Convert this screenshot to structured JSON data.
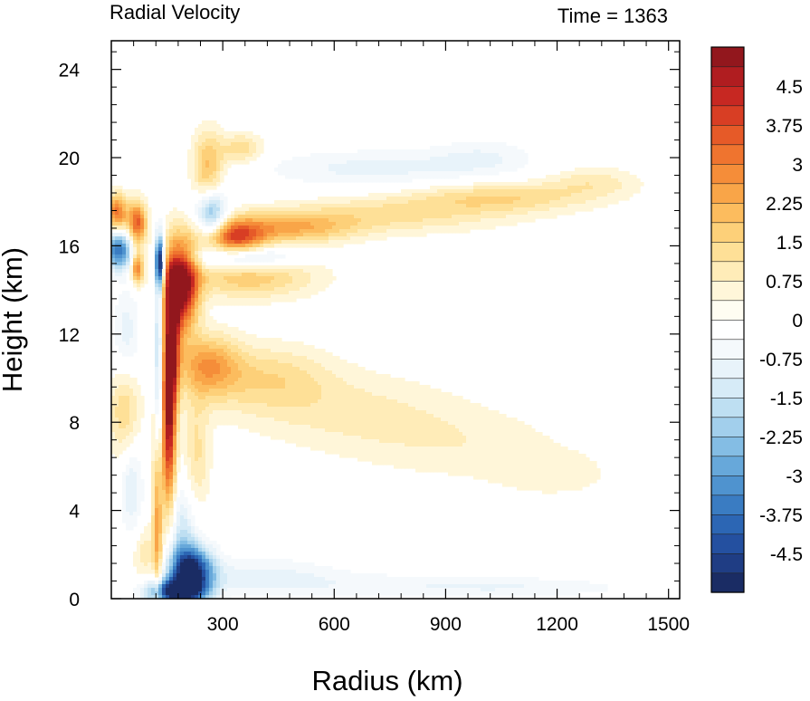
{
  "chart_data": {
    "type": "heatmap",
    "title_left": "Radial Velocity",
    "title_right": "Time = 1363",
    "xlabel": "Radius (km)",
    "ylabel": "Height (km)",
    "xlim": [
      0,
      1530
    ],
    "ylim": [
      0,
      25.3
    ],
    "x_ticks": [
      300,
      600,
      900,
      1200,
      1500
    ],
    "y_ticks": [
      0,
      4,
      8,
      12,
      16,
      20,
      24
    ],
    "colorbar": {
      "min": -5.25,
      "max": 5.25,
      "step": 0.375,
      "tick_values": [
        4.5,
        3.75,
        3,
        2.25,
        1.5,
        0.75,
        0,
        -0.75,
        -1.5,
        -2.25,
        -3,
        -3.75,
        -4.5
      ],
      "tick_labels": [
        "4.5",
        "3.75",
        "3",
        "2.25",
        "1.5",
        "0.75",
        "0",
        "-0.75",
        "-1.5",
        "-2.25",
        "-3",
        "-3.75",
        "-4.5"
      ],
      "colors": [
        "#1a2c64",
        "#1f3d84",
        "#2450a0",
        "#2c66b4",
        "#3a7cc2",
        "#4f93cf",
        "#67a8da",
        "#84bde4",
        "#a2cfec",
        "#bedff2",
        "#d6ebf7",
        "#e8f3fa",
        "#f5f9fc",
        "#ffffff",
        "#fffdf2",
        "#fff6d9",
        "#ffecb8",
        "#fee097",
        "#fdd079",
        "#fcbc5e",
        "#f9a548",
        "#f58d39",
        "#ef742f",
        "#e65a28",
        "#d83e24",
        "#c72822",
        "#b01d20",
        "#92171d"
      ]
    },
    "features": [
      {
        "r": 190,
        "z": 14.2,
        "sr": 30,
        "sz": 1.4,
        "v": 5.4
      },
      {
        "r": 165,
        "z": 12.0,
        "sr": 14,
        "sz": 2.2,
        "v": 3.6
      },
      {
        "r": 155,
        "z": 8.0,
        "sr": 13,
        "sz": 3.0,
        "v": 4.6
      },
      {
        "r": 125,
        "z": 4.0,
        "sr": 9,
        "sz": 3.0,
        "v": 3.0
      },
      {
        "r": 130,
        "z": 15.2,
        "sr": 8,
        "sz": 0.8,
        "v": -5.0
      },
      {
        "r": 127,
        "z": 10.0,
        "sr": 6,
        "sz": 4.0,
        "v": -2.6
      },
      {
        "r": 20,
        "z": 15.8,
        "sr": 25,
        "sz": 0.6,
        "v": -3.8
      },
      {
        "r": 15,
        "z": 17.5,
        "sr": 20,
        "sz": 0.6,
        "v": 3.2
      },
      {
        "r": 70,
        "z": 17.0,
        "sr": 18,
        "sz": 0.7,
        "v": 3.5
      },
      {
        "r": 70,
        "z": 15.0,
        "sr": 12,
        "sz": 0.5,
        "v": 3.0
      },
      {
        "r": 215,
        "z": 1.2,
        "sr": 40,
        "sz": 0.8,
        "v": -5.2
      },
      {
        "r": 170,
        "z": 0.3,
        "sr": 50,
        "sz": 0.4,
        "v": -4.8
      },
      {
        "r": 190,
        "z": 3.0,
        "sr": 30,
        "sz": 1.6,
        "v": -1.4
      },
      {
        "r": 330,
        "z": 16.3,
        "sr": 60,
        "sz": 0.6,
        "v": 3.6
      },
      {
        "r": 480,
        "z": 16.8,
        "sr": 120,
        "sz": 0.5,
        "v": 2.0
      },
      {
        "r": 750,
        "z": 17.4,
        "sr": 220,
        "sz": 0.6,
        "v": 1.2
      },
      {
        "r": 1050,
        "z": 18.2,
        "sr": 170,
        "sz": 0.5,
        "v": 1.4
      },
      {
        "r": 1300,
        "z": 18.9,
        "sr": 90,
        "sz": 0.5,
        "v": 0.9
      },
      {
        "r": 270,
        "z": 17.4,
        "sr": 30,
        "sz": 0.8,
        "v": -3.0
      },
      {
        "r": 350,
        "z": 15.5,
        "sr": 90,
        "sz": 0.4,
        "v": -2.6
      },
      {
        "r": 700,
        "z": 19.5,
        "sr": 200,
        "sz": 0.6,
        "v": -0.9
      },
      {
        "r": 1000,
        "z": 20.0,
        "sr": 100,
        "sz": 0.6,
        "v": -0.7
      },
      {
        "r": 370,
        "z": 14.6,
        "sr": 130,
        "sz": 0.7,
        "v": 1.8
      },
      {
        "r": 260,
        "z": 19.5,
        "sr": 30,
        "sz": 1.2,
        "v": 2.0
      },
      {
        "r": 350,
        "z": 20.4,
        "sr": 40,
        "sz": 0.5,
        "v": 1.4
      },
      {
        "r": 260,
        "z": 10.6,
        "sr": 60,
        "sz": 1.0,
        "v": 2.2
      },
      {
        "r": 420,
        "z": 10.0,
        "sr": 120,
        "sz": 1.1,
        "v": 1.3
      },
      {
        "r": 650,
        "z": 8.5,
        "sr": 200,
        "sz": 1.3,
        "v": 0.8
      },
      {
        "r": 950,
        "z": 7.0,
        "sr": 200,
        "sz": 1.2,
        "v": 0.6
      },
      {
        "r": 1200,
        "z": 5.6,
        "sr": 120,
        "sz": 0.8,
        "v": 0.5
      },
      {
        "r": 35,
        "z": 8.5,
        "sr": 30,
        "sz": 1.5,
        "v": 1.5
      },
      {
        "r": 40,
        "z": 12.0,
        "sr": 25,
        "sz": 1.5,
        "v": -1.0
      },
      {
        "r": 55,
        "z": 5.0,
        "sr": 20,
        "sz": 1.5,
        "v": -1.2
      },
      {
        "r": 400,
        "z": 1.0,
        "sr": 150,
        "sz": 0.6,
        "v": -0.9
      },
      {
        "r": 800,
        "z": 0.6,
        "sr": 250,
        "sz": 0.4,
        "v": -0.6
      },
      {
        "r": 1150,
        "z": 0.5,
        "sr": 200,
        "sz": 0.3,
        "v": -0.5
      },
      {
        "r": 230,
        "z": 6.5,
        "sr": 25,
        "sz": 2.0,
        "v": 1.2
      },
      {
        "r": 90,
        "z": 2.0,
        "sr": 25,
        "sz": 1.0,
        "v": 1.0
      }
    ]
  }
}
